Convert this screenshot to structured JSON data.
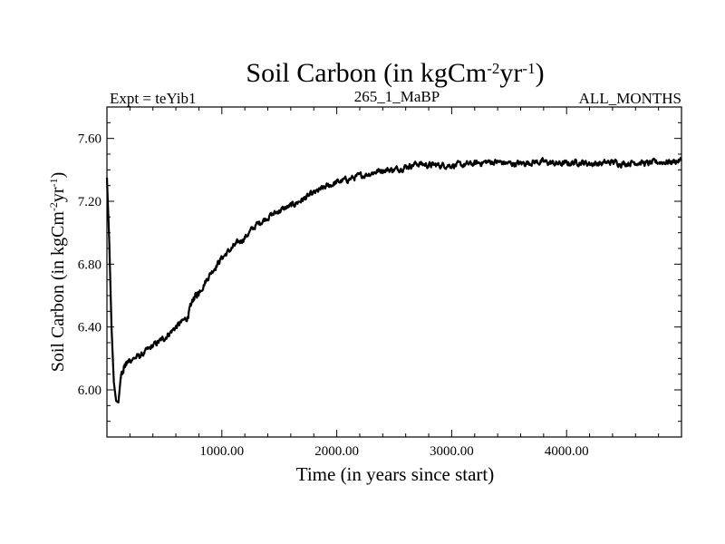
{
  "chart_data": {
    "type": "line",
    "title": {
      "base": "Soil Carbon (in kgCm",
      "sup1": "-2",
      "mid": "yr",
      "sup2": "-1",
      "end": ")"
    },
    "subtitle_left": "Expt = teYib1",
    "subtitle_center": "265_1_MaBP",
    "subtitle_right": "ALL_MONTHS",
    "xlabel": "Time (in years since start)",
    "ylabel": {
      "base": "Soil Carbon (in kgCm",
      "sup1": "-2",
      "mid": "yr",
      "sup2": "-1",
      "end": ")"
    },
    "xlim": [
      0,
      5000
    ],
    "ylim": [
      5.7,
      7.8
    ],
    "x_ticks": [
      1000,
      2000,
      3000,
      4000
    ],
    "x_tick_labels": [
      "1000.00",
      "2000.00",
      "3000.00",
      "4000.00"
    ],
    "y_ticks": [
      6.0,
      6.4,
      6.8,
      7.2,
      7.6
    ],
    "y_tick_labels": [
      "6.00",
      "6.40",
      "6.80",
      "7.20",
      "7.60"
    ],
    "grid": false,
    "series": [
      {
        "name": "Soil Carbon",
        "color": "#000000",
        "x": [
          0,
          20,
          40,
          60,
          80,
          100,
          120,
          150,
          200,
          300,
          400,
          500,
          600,
          700,
          750,
          800,
          900,
          1000,
          1100,
          1200,
          1300,
          1400,
          1500,
          1600,
          1700,
          1800,
          1900,
          2000,
          2100,
          2200,
          2300,
          2400,
          2500,
          2600,
          2700,
          2800,
          2900,
          3000,
          3100,
          3200,
          3300,
          3400,
          3500,
          3600,
          3700,
          3800,
          3900,
          4000,
          4100,
          4200,
          4300,
          4400,
          4500,
          4600,
          4700,
          4800,
          4900,
          5000
        ],
        "y": [
          7.35,
          6.95,
          6.4,
          6.05,
          5.93,
          5.92,
          6.08,
          6.15,
          6.19,
          6.22,
          6.28,
          6.33,
          6.4,
          6.46,
          6.58,
          6.62,
          6.74,
          6.84,
          6.91,
          6.97,
          7.05,
          7.1,
          7.14,
          7.17,
          7.21,
          7.25,
          7.29,
          7.32,
          7.34,
          7.36,
          7.38,
          7.4,
          7.4,
          7.42,
          7.44,
          7.43,
          7.43,
          7.43,
          7.43,
          7.44,
          7.45,
          7.45,
          7.44,
          7.44,
          7.45,
          7.45,
          7.44,
          7.44,
          7.45,
          7.44,
          7.44,
          7.45,
          7.44,
          7.45,
          7.44,
          7.45,
          7.45,
          7.46
        ]
      }
    ]
  }
}
